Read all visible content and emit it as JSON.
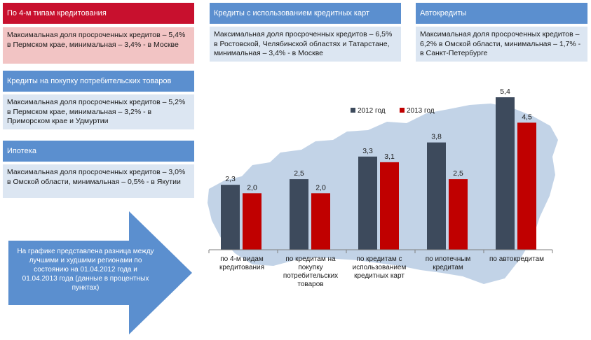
{
  "panels": {
    "all_types": {
      "header": "По 4-м типам кредитования",
      "body": "Максимальная доля просроченных кредитов – 5,4% в Пермском крае, минимальная – 3,4% - в Москве"
    },
    "consumer": {
      "header": "Кредиты на покупку потребительских товаров",
      "body": "Максимальная доля просроченных кредитов – 5,2% в Пермском крае, минимальная – 3,2% - в Приморском крае и Удмуртии"
    },
    "mortgage": {
      "header": "Ипотека",
      "body": "Максимальная доля просроченных кредитов – 3,0% в Омской области, минимальная – 0,5% - в Якутии"
    },
    "cards": {
      "header": "Кредиты с использованием кредитных карт",
      "body": "Максимальная доля просроченных кредитов – 6,5% в Ростовской, Челябинской областях и Татарстане, минимальная – 3,4% - в Москве"
    },
    "auto": {
      "header": "Автокредиты",
      "body": "Максимальная доля просроченных кредитов – 6,2% в Омской области, минимальная – 1,7% - в Санкт-Петербурге"
    }
  },
  "note": "На графике представлена разница между лучшими и худшими регионами по состоянию на 01.04.2012 года и 01.04.2013 года (данные в процентных пунктах)",
  "colors": {
    "red": "#c8102e",
    "blue_header": "#5b8fcf",
    "bar_2012": "#3d4a5c",
    "bar_2013": "#c00000",
    "map": "#b7cbe3",
    "arrow": "#5b8fcf"
  },
  "chart_data": {
    "type": "bar",
    "categories": [
      [
        "по 4-м видам",
        "кредитования"
      ],
      [
        "по кредитам на",
        "покупку",
        "потребительских",
        "товаров"
      ],
      [
        "по кредитам с",
        "использованием",
        "кредитных карт"
      ],
      [
        "по ипотечным",
        "кредитам"
      ],
      [
        "по автокредитам"
      ]
    ],
    "series": [
      {
        "name": "2012 год",
        "values": [
          2.3,
          2.5,
          3.3,
          3.8,
          5.4
        ],
        "labels": [
          "2,3",
          "2,5",
          "3,3",
          "3,8",
          "5,4"
        ]
      },
      {
        "name": "2013 год",
        "values": [
          2.0,
          2.0,
          3.1,
          2.5,
          4.5
        ],
        "labels": [
          "2,0",
          "2,0",
          "3,1",
          "2,5",
          "4,5"
        ]
      }
    ],
    "ylim": [
      0,
      5.5
    ],
    "grid": false,
    "legend": "top"
  }
}
